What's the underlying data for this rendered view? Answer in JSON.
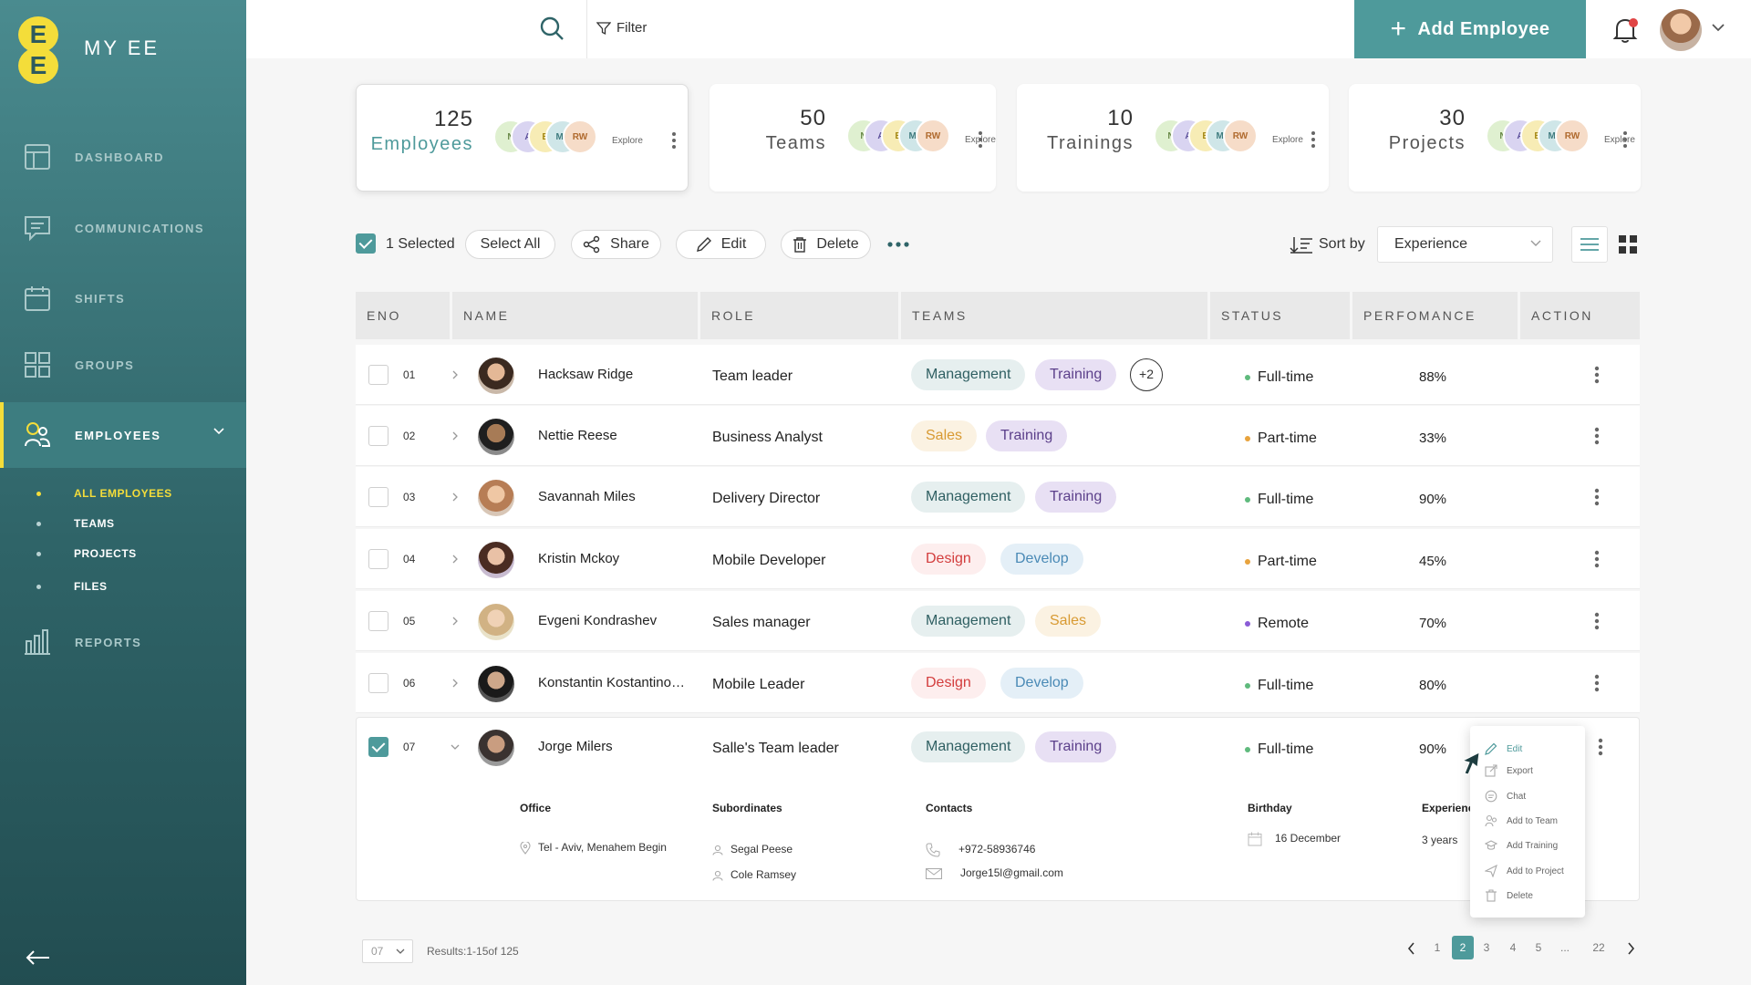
{
  "app": {
    "title": "MY EE",
    "logo_letters": [
      "E",
      "E"
    ]
  },
  "sidebar": {
    "items": [
      {
        "label": "DASHBOARD",
        "icon": "dashboard-icon"
      },
      {
        "label": "COMMUNICATIONS",
        "icon": "chat-icon"
      },
      {
        "label": "SHIFTS",
        "icon": "calendar-icon"
      },
      {
        "label": "GROUPS",
        "icon": "grid-icon"
      },
      {
        "label": "EMPLOYEES",
        "icon": "users-icon",
        "active": true
      },
      {
        "label": "REPORTS",
        "icon": "bar-chart-icon"
      }
    ],
    "subitems": [
      {
        "label": "ALL EMPLOYEES",
        "active": true
      },
      {
        "label": "TEAMS"
      },
      {
        "label": "PROJECTS"
      },
      {
        "label": "FILES"
      }
    ]
  },
  "topbar": {
    "filter_label": "Filter",
    "add_button": "Add Employee"
  },
  "stats": [
    {
      "count": "125",
      "label": "Employees",
      "explore": "Explore",
      "avatars": [
        "N",
        "A",
        "B",
        "MS",
        "RW"
      ]
    },
    {
      "count": "50",
      "label": "Teams",
      "explore": "Explore",
      "avatars": [
        "N",
        "A",
        "B",
        "MS",
        "RW"
      ]
    },
    {
      "count": "10",
      "label": "Trainings",
      "explore": "Explore",
      "avatars": [
        "N",
        "A",
        "B",
        "MS",
        "RW"
      ]
    },
    {
      "count": "30",
      "label": "Projects",
      "explore": "Explore",
      "avatars": [
        "N",
        "A",
        "B",
        "MS",
        "RW"
      ]
    }
  ],
  "toolbar": {
    "selected": "1 Selected",
    "select_all": "Select All",
    "share": "Share",
    "edit": "Edit",
    "delete": "Delete",
    "sort_by": "Sort by",
    "sort_value": "Experience"
  },
  "table": {
    "headers": [
      "ENO",
      "NAME",
      "ROLE",
      "TEAMS",
      "STATUS",
      "PERFOMANCE",
      "ACTION"
    ],
    "rows": [
      {
        "eno": "01",
        "name": "Hacksaw Ridge",
        "role": "Team leader",
        "teams": [
          "Management",
          "Training"
        ],
        "extra": "+2",
        "status": "Full-time",
        "perf": "88%"
      },
      {
        "eno": "02",
        "name": "Nettie Reese",
        "role": "Business Analyst",
        "teams": [
          "Sales",
          "Training"
        ],
        "status": "Part-time",
        "perf": "33%"
      },
      {
        "eno": "03",
        "name": "Savannah Miles",
        "role": "Delivery Director",
        "teams": [
          "Management",
          "Training"
        ],
        "status": "Full-time",
        "perf": "90%"
      },
      {
        "eno": "04",
        "name": "Kristin Mckoy",
        "role": "Mobile Developer",
        "teams": [
          "Design",
          "Develop"
        ],
        "status": "Part-time",
        "perf": "45%"
      },
      {
        "eno": "05",
        "name": "Evgeni Kondrashev",
        "role": "Sales manager",
        "teams": [
          "Management",
          "Sales"
        ],
        "status": "Remote",
        "perf": "70%"
      },
      {
        "eno": "06",
        "name": "Konstantin Kostantinopo..",
        "role": "Mobile Leader",
        "teams": [
          "Design",
          "Develop"
        ],
        "status": "Full-time",
        "perf": "80%"
      },
      {
        "eno": "07",
        "name": "Jorge Milers",
        "role": "Salle's Team leader",
        "teams": [
          "Management",
          "Training"
        ],
        "status": "Full-time",
        "perf": "90%"
      }
    ],
    "status_colors": {
      "Full-time": "#5fba7d",
      "Part-time": "#e8a33d",
      "Remote": "#8a5cd6"
    }
  },
  "details": {
    "office_label": "Office",
    "office_value": "Tel - Aviv, Menahem Begin",
    "subordinates_label": "Subordinates",
    "subordinates": [
      "Segal Peese",
      "Cole Ramsey"
    ],
    "contacts_label": "Contacts",
    "phone": "+972-58936746",
    "email": "Jorge15l@gmail.com",
    "birthday_label": "Birthday",
    "birthday_value": "16 December",
    "experience_label": "Experience",
    "experience_value": "3 years"
  },
  "context_menu": [
    "Edit",
    "Export",
    "Chat",
    "Add to Team",
    "Add Training",
    "Add to Project",
    "Delete"
  ],
  "footer": {
    "per_page": "07",
    "results": "Results:1-15of 125",
    "pages": [
      "1",
      "2",
      "3",
      "4",
      "5",
      "...",
      "22"
    ],
    "current_page": "2"
  },
  "colors": {
    "accent": "#4e9a9b",
    "highlight": "#f4dd3a"
  }
}
